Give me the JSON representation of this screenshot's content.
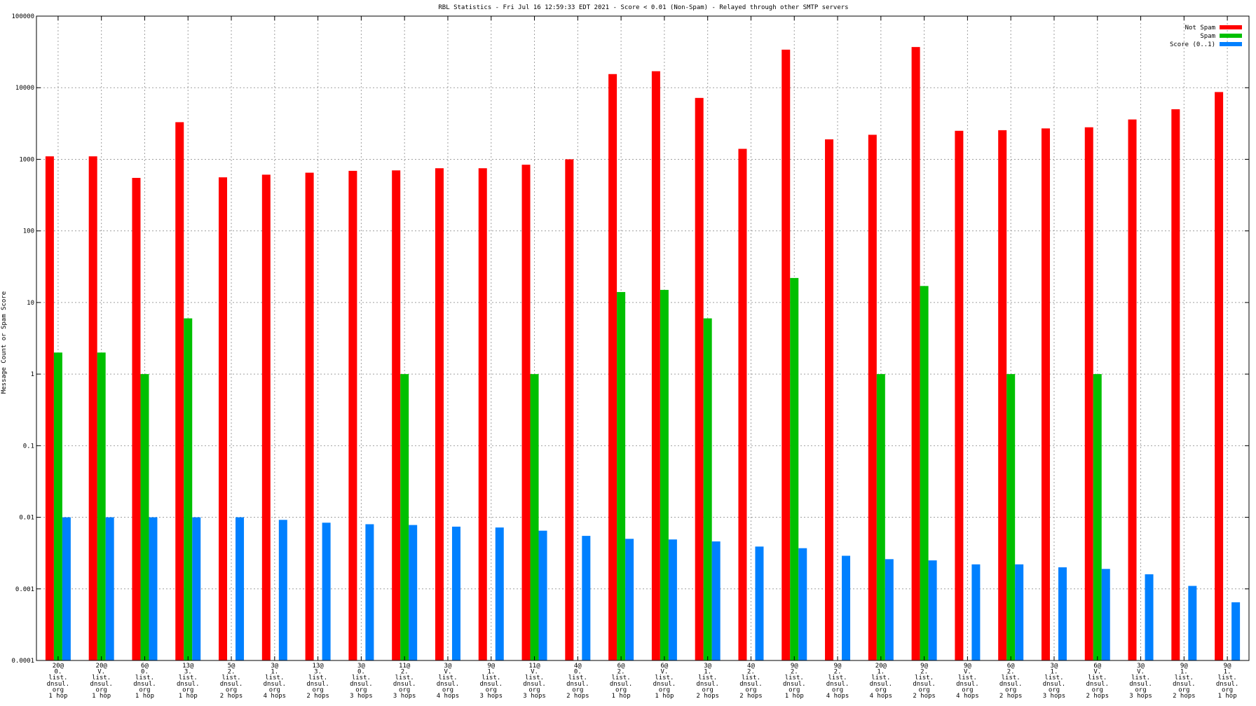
{
  "chart_data": {
    "type": "bar",
    "title": "RBL Statistics - Fri Jul 16 12:59:33 EDT 2021 - Score < 0.01 (Non-Spam) - Relayed through other SMTP servers",
    "ylabel": "Message Count or Spam Score",
    "xlabel": "",
    "yscale": "log",
    "ylim": [
      0.0001,
      100000
    ],
    "yticks": [
      "0.0001",
      "0.001",
      "0.01",
      "0.1",
      "1",
      "10",
      "100",
      "1000",
      "10000",
      "100000"
    ],
    "grid": true,
    "legend_position": "top-right",
    "categories": [
      [
        "20@",
        "0.",
        "list.",
        "dnsul.",
        "org",
        "1 hop"
      ],
      [
        "20@",
        "V.",
        "list.",
        "dnsul.",
        "org",
        "1 hop"
      ],
      [
        "6@",
        "0.",
        "list.",
        "dnsul.",
        "org",
        "1 hop"
      ],
      [
        "13@",
        "3.",
        "list.",
        "dnsul.",
        "org",
        "1 hop"
      ],
      [
        "5@",
        "2.",
        "list.",
        "dnsul.",
        "org",
        "2 hops"
      ],
      [
        "3@",
        "1.",
        "list.",
        "dnsul.",
        "org",
        "4 hops"
      ],
      [
        "13@",
        "3.",
        "list.",
        "dnsul.",
        "org",
        "2 hops"
      ],
      [
        "3@",
        "0.",
        "list.",
        "dnsul.",
        "org",
        "3 hops"
      ],
      [
        "11@",
        "2.",
        "list.",
        "dnsul.",
        "org",
        "3 hops"
      ],
      [
        "3@",
        "V.",
        "list.",
        "dnsul.",
        "org",
        "4 hops"
      ],
      [
        "9@",
        "1.",
        "list.",
        "dnsul.",
        "org",
        "3 hops"
      ],
      [
        "11@",
        "V.",
        "list.",
        "dnsul.",
        "org",
        "3 hops"
      ],
      [
        "4@",
        "0.",
        "list.",
        "dnsul.",
        "org",
        "2 hops"
      ],
      [
        "6@",
        "2.",
        "list.",
        "dnsul.",
        "org",
        "1 hop"
      ],
      [
        "6@",
        "V.",
        "list.",
        "dnsul.",
        "org",
        "1 hop"
      ],
      [
        "3@",
        "1.",
        "list.",
        "dnsul.",
        "org",
        "2 hops"
      ],
      [
        "4@",
        "2.",
        "list.",
        "dnsul.",
        "org",
        "2 hops"
      ],
      [
        "9@",
        "2.",
        "list.",
        "dnsul.",
        "org",
        "1 hop"
      ],
      [
        "9@",
        "2.",
        "list.",
        "dnsul.",
        "org",
        "4 hops"
      ],
      [
        "20@",
        "1.",
        "list.",
        "dnsul.",
        "org",
        "4 hops"
      ],
      [
        "9@",
        "2.",
        "list.",
        "dnsul.",
        "org",
        "2 hops"
      ],
      [
        "9@",
        "V.",
        "list.",
        "dnsul.",
        "org",
        "4 hops"
      ],
      [
        "6@",
        "2.",
        "list.",
        "dnsul.",
        "org",
        "2 hops"
      ],
      [
        "3@",
        "1.",
        "list.",
        "dnsul.",
        "org",
        "3 hops"
      ],
      [
        "6@",
        "V.",
        "list.",
        "dnsul.",
        "org",
        "2 hops"
      ],
      [
        "3@",
        "V.",
        "list.",
        "dnsul.",
        "org",
        "3 hops"
      ],
      [
        "9@",
        "1.",
        "list.",
        "dnsul.",
        "org",
        "2 hops"
      ],
      [
        "9@",
        "1.",
        "list.",
        "dnsul.",
        "org",
        "1 hop"
      ]
    ],
    "series": [
      {
        "name": "Not Spam",
        "color": "#ff0000",
        "values": [
          1100,
          1100,
          550,
          3300,
          560,
          610,
          650,
          690,
          700,
          750,
          750,
          840,
          1000,
          15500,
          17000,
          7200,
          1400,
          34000,
          1900,
          2200,
          37000,
          2500,
          2550,
          2700,
          2800,
          3600,
          5000,
          8700
        ]
      },
      {
        "name": "Spam",
        "color": "#00c000",
        "values": [
          2,
          2,
          1,
          6,
          null,
          null,
          null,
          null,
          1,
          null,
          null,
          1,
          null,
          14,
          15,
          6,
          null,
          22,
          null,
          1,
          17,
          null,
          1,
          null,
          1,
          null,
          null,
          null
        ]
      },
      {
        "name": "Score (0..1)",
        "color": "#0080ff",
        "values": [
          0.01,
          0.01,
          0.01,
          0.01,
          0.01,
          0.0092,
          0.0084,
          0.008,
          0.0078,
          0.0074,
          0.0072,
          0.0065,
          0.0055,
          0.005,
          0.0049,
          0.0046,
          0.0039,
          0.0037,
          0.0029,
          0.0026,
          0.0025,
          0.0022,
          0.0022,
          0.002,
          0.0019,
          0.0016,
          0.0011,
          0.00065
        ]
      }
    ]
  }
}
